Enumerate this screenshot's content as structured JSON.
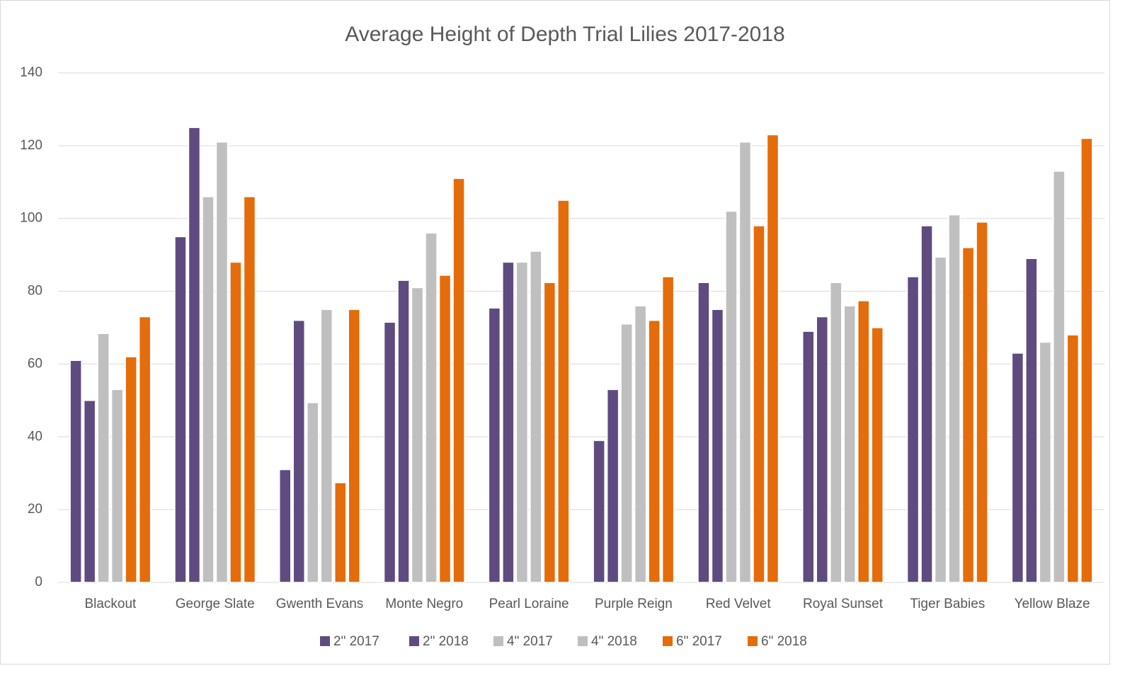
{
  "chart_data": {
    "type": "bar",
    "title": "Average Height of Depth Trial Lilies 2017-2018",
    "categories": [
      "Blackout",
      "George Slate",
      "Gwenth Evans",
      "Monte Negro",
      "Pearl Loraine",
      "Purple Reign",
      "Red Velvet",
      "Royal Sunset",
      "Tiger Babies",
      "Yellow Blaze"
    ],
    "series": [
      {
        "name": "2\"  2017",
        "color": "#5f4b7f",
        "values": [
          61,
          95,
          31,
          71.5,
          75.4,
          39,
          82.4,
          69,
          84,
          63
        ]
      },
      {
        "name": "2\"  2018",
        "color": "#5f4b7f",
        "values": [
          50,
          125,
          72,
          83,
          88,
          53,
          75,
          73,
          98,
          89
        ]
      },
      {
        "name": "4\" 2017",
        "color": "#bfbfbf",
        "values": [
          68.4,
          106,
          49.4,
          81,
          88,
          71,
          102,
          82.4,
          89.4,
          66
        ]
      },
      {
        "name": "4\" 2018",
        "color": "#bfbfbf",
        "values": [
          53,
          121,
          75,
          96,
          91,
          76,
          121,
          76,
          101,
          113
        ]
      },
      {
        "name": "6\" 2017",
        "color": "#e46c0a",
        "values": [
          62,
          88,
          27.4,
          84.4,
          82.4,
          72,
          98,
          77.4,
          92,
          68
        ]
      },
      {
        "name": "6\" 2018",
        "color": "#e46c0a",
        "values": [
          73,
          106,
          75,
          111,
          105,
          84,
          123,
          70,
          99,
          122
        ]
      }
    ],
    "ylim": [
      0,
      140
    ],
    "yticks": [
      0,
      20,
      40,
      60,
      80,
      100,
      120,
      140
    ],
    "grid": true,
    "legend": "bottom"
  }
}
